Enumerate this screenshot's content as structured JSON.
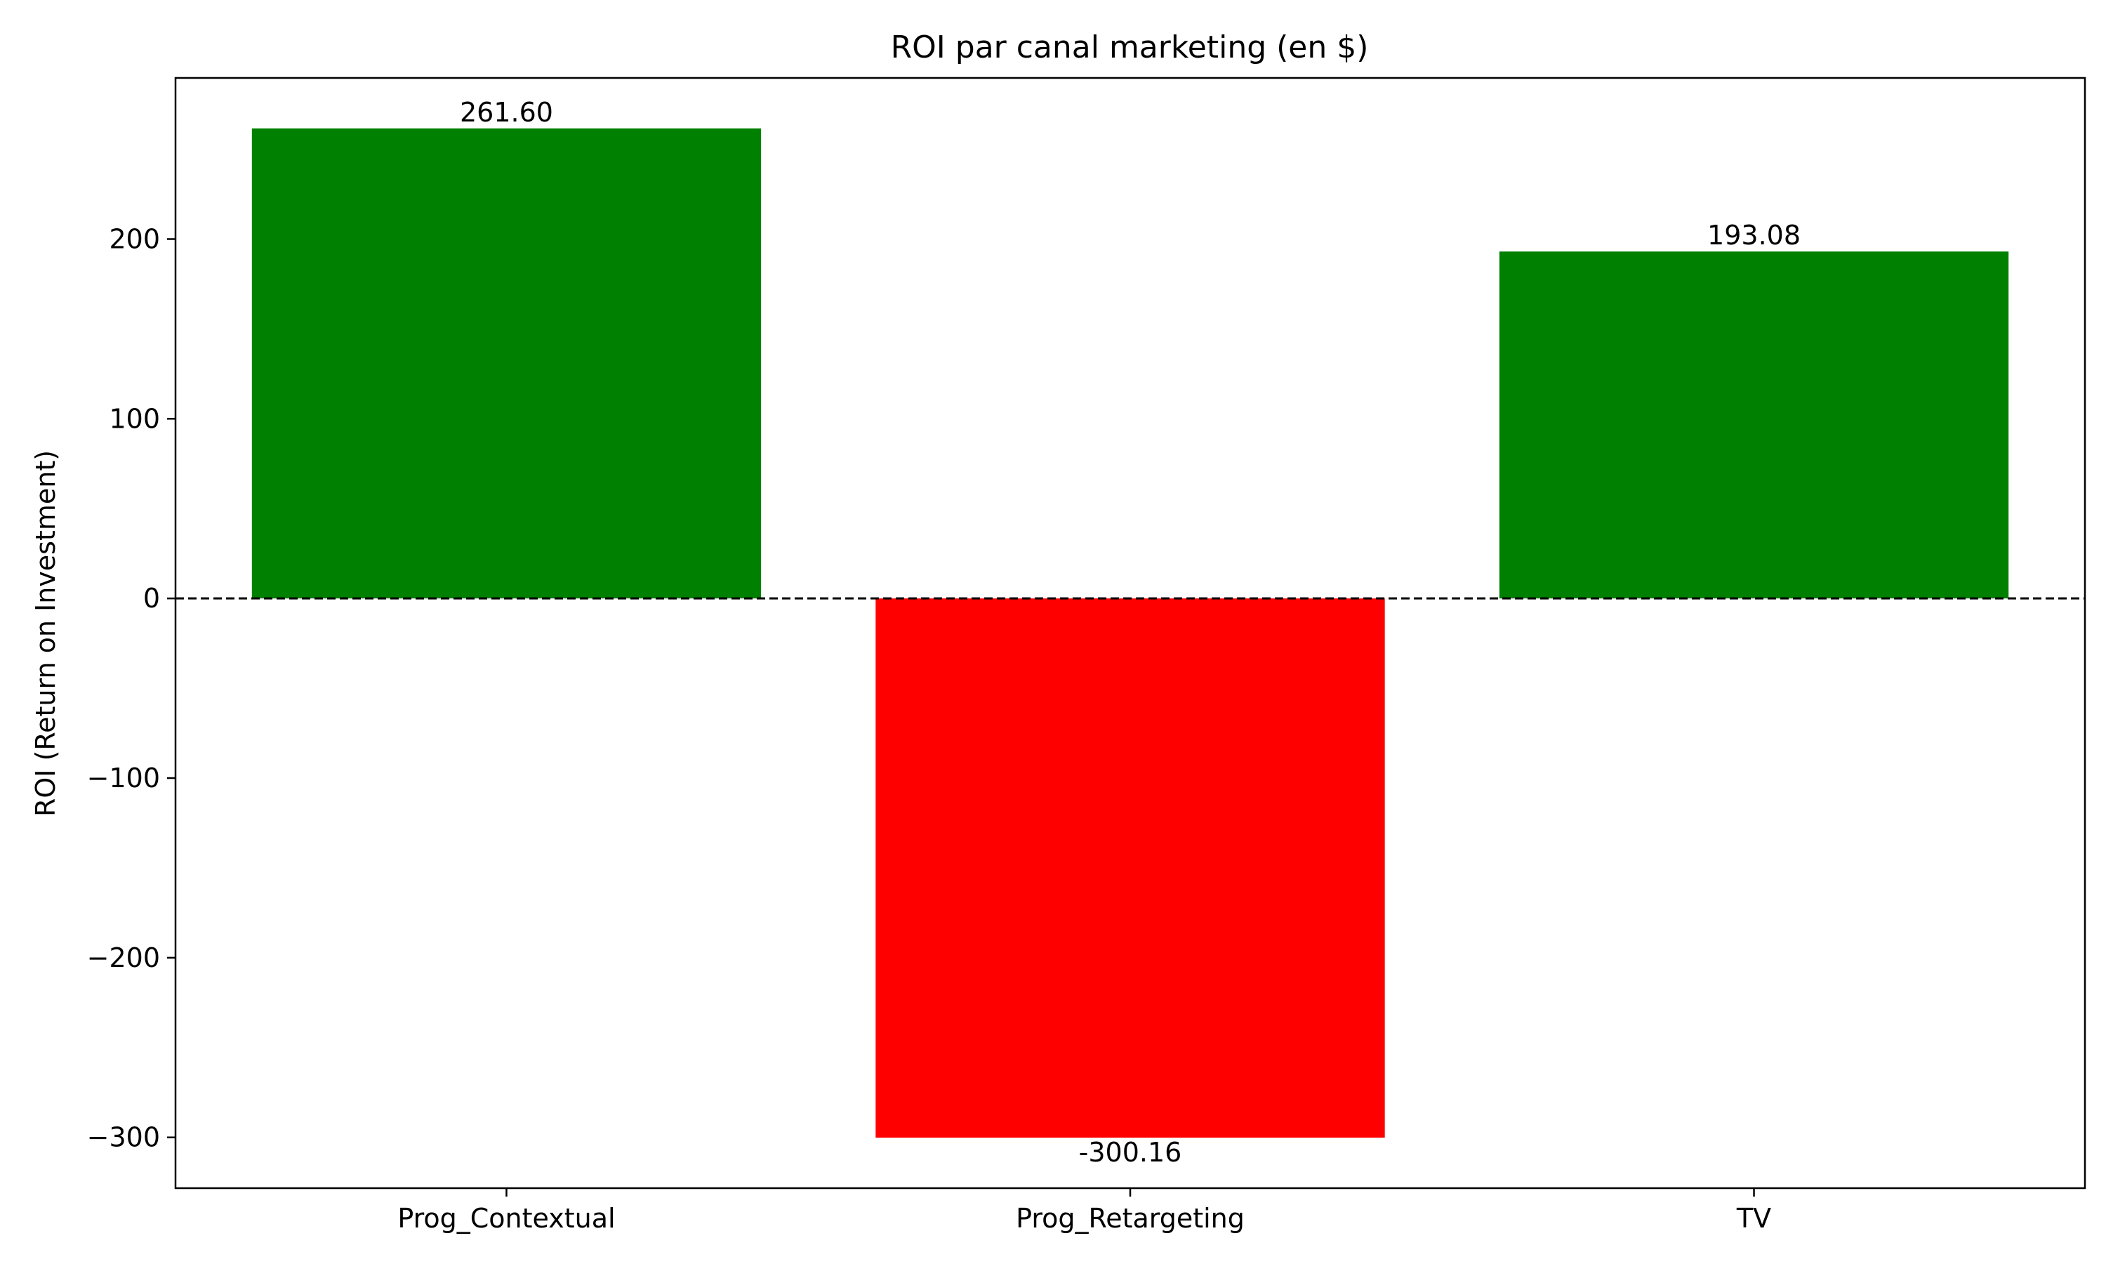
{
  "chart_data": {
    "type": "bar",
    "title": "ROI par canal marketing (en $)",
    "xlabel": "",
    "ylabel": "ROI (Return on Investment)",
    "categories": [
      "Prog_Contextual",
      "Prog_Retargeting",
      "TV"
    ],
    "values": [
      261.6,
      -300.16,
      193.08
    ],
    "value_labels": [
      "261.60",
      "-300.16",
      "193.08"
    ],
    "bar_colors": [
      "#008000",
      "#ff0000",
      "#008000"
    ],
    "ylim": [
      -328.25,
      289.69
    ],
    "yticks": [
      -300,
      -200,
      -100,
      0,
      100,
      200
    ],
    "ytick_labels": [
      "−300",
      "−200",
      "−100",
      "0",
      "100",
      "200"
    ],
    "reference_line": {
      "y": 0,
      "style": "dashed",
      "color": "#000000"
    },
    "grid": false,
    "legend": "none"
  }
}
